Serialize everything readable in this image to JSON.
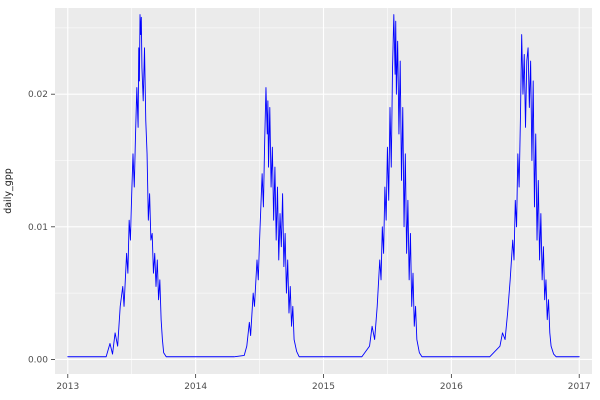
{
  "chart_data": {
    "type": "line",
    "title": "",
    "xlabel": "",
    "ylabel": "daily_gpp",
    "xlim": [
      2012.9,
      2017.1
    ],
    "ylim": [
      -0.0011,
      0.0265
    ],
    "x_ticks": [
      2013,
      2014,
      2015,
      2016,
      2017
    ],
    "x_tick_labels": [
      "2013",
      "2014",
      "2015",
      "2016",
      "2017"
    ],
    "y_ticks": [
      0,
      0.01,
      0.02
    ],
    "y_tick_labels": [
      "0.00",
      "0.01",
      "0.02"
    ],
    "x_minor_ticks": [
      2013.5,
      2014.5,
      2015.5,
      2016.5
    ],
    "y_minor_ticks": [
      0.005,
      0.015,
      0.025
    ],
    "grid": true,
    "legend": "none",
    "theme": {
      "panel_bg": "#EBEBEB",
      "grid_color": "#FFFFFF",
      "line_color": "#0000FF",
      "tick_mark_color": "#333333",
      "tick_label_color": "#4D4D4D",
      "axis_title_color": "#1A1A1A",
      "background": "#FFFFFF"
    },
    "series": [
      {
        "name": "daily_gpp",
        "points": [
          [
            2013.0,
            0.0002
          ],
          [
            2013.1,
            0.0002
          ],
          [
            2013.2,
            0.0002
          ],
          [
            2013.3,
            0.0002
          ],
          [
            2013.33,
            0.0012
          ],
          [
            2013.35,
            0.0004
          ],
          [
            2013.37,
            0.002
          ],
          [
            2013.39,
            0.001
          ],
          [
            2013.41,
            0.004
          ],
          [
            2013.43,
            0.0055
          ],
          [
            2013.44,
            0.004
          ],
          [
            2013.46,
            0.008
          ],
          [
            2013.47,
            0.0065
          ],
          [
            2013.48,
            0.0105
          ],
          [
            2013.49,
            0.009
          ],
          [
            2013.5,
            0.0125
          ],
          [
            2013.51,
            0.0155
          ],
          [
            2013.52,
            0.013
          ],
          [
            2013.53,
            0.017
          ],
          [
            2013.54,
            0.0205
          ],
          [
            2013.55,
            0.0175
          ],
          [
            2013.555,
            0.0235
          ],
          [
            2013.56,
            0.021
          ],
          [
            2013.565,
            0.026
          ],
          [
            2013.57,
            0.0245
          ],
          [
            2013.575,
            0.0258
          ],
          [
            2013.58,
            0.022
          ],
          [
            2013.59,
            0.0195
          ],
          [
            2013.6,
            0.0235
          ],
          [
            2013.61,
            0.018
          ],
          [
            2013.62,
            0.0155
          ],
          [
            2013.63,
            0.0105
          ],
          [
            2013.64,
            0.0125
          ],
          [
            2013.65,
            0.009
          ],
          [
            2013.66,
            0.0095
          ],
          [
            2013.67,
            0.0065
          ],
          [
            2013.68,
            0.008
          ],
          [
            2013.69,
            0.0055
          ],
          [
            2013.7,
            0.0075
          ],
          [
            2013.71,
            0.0045
          ],
          [
            2013.72,
            0.006
          ],
          [
            2013.73,
            0.003
          ],
          [
            2013.74,
            0.0015
          ],
          [
            2013.75,
            0.0005
          ],
          [
            2013.77,
            0.0002
          ],
          [
            2013.9,
            0.0002
          ],
          [
            2014.0,
            0.0002
          ],
          [
            2014.1,
            0.0002
          ],
          [
            2014.2,
            0.0002
          ],
          [
            2014.3,
            0.0002
          ],
          [
            2014.38,
            0.0003
          ],
          [
            2014.4,
            0.001
          ],
          [
            2014.42,
            0.0028
          ],
          [
            2014.43,
            0.0018
          ],
          [
            2014.45,
            0.005
          ],
          [
            2014.46,
            0.004
          ],
          [
            2014.48,
            0.0075
          ],
          [
            2014.49,
            0.006
          ],
          [
            2014.5,
            0.009
          ],
          [
            2014.51,
            0.0115
          ],
          [
            2014.52,
            0.014
          ],
          [
            2014.53,
            0.0115
          ],
          [
            2014.54,
            0.0165
          ],
          [
            2014.55,
            0.0205
          ],
          [
            2014.56,
            0.017
          ],
          [
            2014.565,
            0.0195
          ],
          [
            2014.57,
            0.0145
          ],
          [
            2014.58,
            0.019
          ],
          [
            2014.59,
            0.013
          ],
          [
            2014.6,
            0.016
          ],
          [
            2014.61,
            0.0105
          ],
          [
            2014.62,
            0.0145
          ],
          [
            2014.63,
            0.009
          ],
          [
            2014.64,
            0.013
          ],
          [
            2014.65,
            0.0075
          ],
          [
            2014.66,
            0.011
          ],
          [
            2014.67,
            0.0085
          ],
          [
            2014.68,
            0.0125
          ],
          [
            2014.69,
            0.007
          ],
          [
            2014.7,
            0.0095
          ],
          [
            2014.71,
            0.005
          ],
          [
            2014.72,
            0.0075
          ],
          [
            2014.73,
            0.0035
          ],
          [
            2014.74,
            0.0055
          ],
          [
            2014.75,
            0.0025
          ],
          [
            2014.76,
            0.004
          ],
          [
            2014.77,
            0.0015
          ],
          [
            2014.79,
            0.0006
          ],
          [
            2014.81,
            0.0002
          ],
          [
            2014.9,
            0.0002
          ],
          [
            2015.0,
            0.0002
          ],
          [
            2015.1,
            0.0002
          ],
          [
            2015.2,
            0.0002
          ],
          [
            2015.3,
            0.0002
          ],
          [
            2015.36,
            0.001
          ],
          [
            2015.38,
            0.0025
          ],
          [
            2015.4,
            0.0015
          ],
          [
            2015.42,
            0.004
          ],
          [
            2015.44,
            0.0075
          ],
          [
            2015.45,
            0.006
          ],
          [
            2015.46,
            0.01
          ],
          [
            2015.47,
            0.008
          ],
          [
            2015.48,
            0.013
          ],
          [
            2015.49,
            0.0105
          ],
          [
            2015.5,
            0.016
          ],
          [
            2015.51,
            0.012
          ],
          [
            2015.52,
            0.019
          ],
          [
            2015.53,
            0.0145
          ],
          [
            2015.54,
            0.022
          ],
          [
            2015.55,
            0.026
          ],
          [
            2015.56,
            0.0215
          ],
          [
            2015.565,
            0.0255
          ],
          [
            2015.57,
            0.02
          ],
          [
            2015.58,
            0.024
          ],
          [
            2015.59,
            0.017
          ],
          [
            2015.6,
            0.0225
          ],
          [
            2015.61,
            0.0135
          ],
          [
            2015.62,
            0.019
          ],
          [
            2015.63,
            0.01
          ],
          [
            2015.64,
            0.0155
          ],
          [
            2015.65,
            0.008
          ],
          [
            2015.66,
            0.012
          ],
          [
            2015.67,
            0.006
          ],
          [
            2015.68,
            0.0095
          ],
          [
            2015.69,
            0.004
          ],
          [
            2015.7,
            0.0065
          ],
          [
            2015.71,
            0.0025
          ],
          [
            2015.72,
            0.004
          ],
          [
            2015.73,
            0.0015
          ],
          [
            2015.75,
            0.0005
          ],
          [
            2015.77,
            0.0002
          ],
          [
            2015.9,
            0.0002
          ],
          [
            2016.0,
            0.0002
          ],
          [
            2016.1,
            0.0002
          ],
          [
            2016.2,
            0.0002
          ],
          [
            2016.3,
            0.0002
          ],
          [
            2016.38,
            0.001
          ],
          [
            2016.4,
            0.002
          ],
          [
            2016.42,
            0.0015
          ],
          [
            2016.44,
            0.0035
          ],
          [
            2016.46,
            0.006
          ],
          [
            2016.48,
            0.009
          ],
          [
            2016.49,
            0.0075
          ],
          [
            2016.5,
            0.012
          ],
          [
            2016.51,
            0.01
          ],
          [
            2016.52,
            0.0155
          ],
          [
            2016.53,
            0.013
          ],
          [
            2016.54,
            0.018
          ],
          [
            2016.55,
            0.0245
          ],
          [
            2016.56,
            0.02
          ],
          [
            2016.57,
            0.023
          ],
          [
            2016.58,
            0.0175
          ],
          [
            2016.59,
            0.0225
          ],
          [
            2016.6,
            0.0235
          ],
          [
            2016.61,
            0.019
          ],
          [
            2016.62,
            0.0225
          ],
          [
            2016.63,
            0.015
          ],
          [
            2016.64,
            0.021
          ],
          [
            2016.65,
            0.0115
          ],
          [
            2016.66,
            0.017
          ],
          [
            2016.67,
            0.009
          ],
          [
            2016.68,
            0.0135
          ],
          [
            2016.69,
            0.0075
          ],
          [
            2016.7,
            0.011
          ],
          [
            2016.71,
            0.006
          ],
          [
            2016.72,
            0.0085
          ],
          [
            2016.73,
            0.0045
          ],
          [
            2016.74,
            0.006
          ],
          [
            2016.75,
            0.003
          ],
          [
            2016.76,
            0.0045
          ],
          [
            2016.77,
            0.002
          ],
          [
            2016.78,
            0.001
          ],
          [
            2016.8,
            0.0004
          ],
          [
            2016.82,
            0.0002
          ],
          [
            2016.9,
            0.0002
          ],
          [
            2017.0,
            0.0002
          ]
        ]
      }
    ]
  }
}
